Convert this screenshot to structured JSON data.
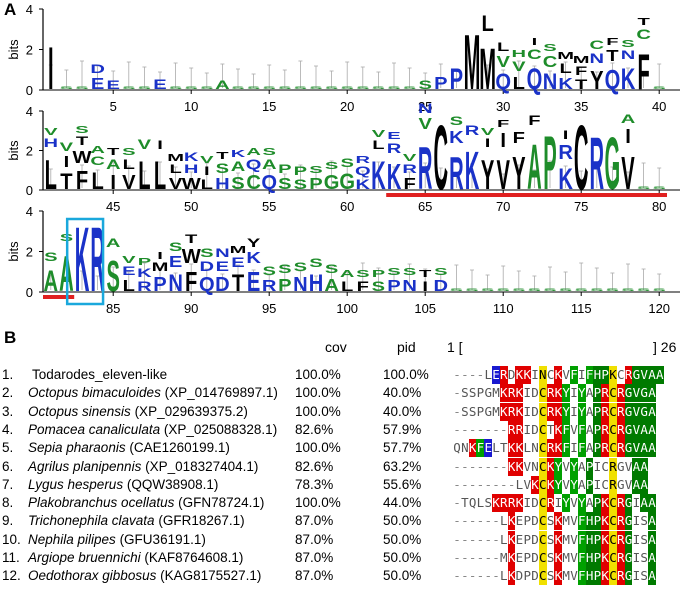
{
  "panels": {
    "a_label": "A",
    "b_label": "B"
  },
  "logo": {
    "y_axis_label": "bits",
    "y_ticks": [
      "4",
      "2",
      "0"
    ],
    "rows": [
      {
        "x_ticks": [
          "5",
          "10",
          "15",
          "20",
          "25",
          "30",
          "35",
          "40"
        ],
        "start": 1
      },
      {
        "x_ticks": [
          "45",
          "50",
          "55",
          "60",
          "65",
          "70",
          "75",
          "80"
        ],
        "start": 41
      },
      {
        "x_ticks": [
          "85",
          "90",
          "95",
          "100",
          "105",
          "110",
          "115",
          "120"
        ],
        "start": 81
      }
    ],
    "colors": {
      "green": "#1e8c2a",
      "blue": "#1a32c8",
      "black": "#000000",
      "red_bar": "#e02020",
      "highlight_box": "#1aa8dc"
    },
    "highlight_positions": "82-84",
    "underline_positions": "63-82"
  },
  "table": {
    "cov_header": "cov",
    "pid_header": "pid",
    "range_start": "1 [",
    "range_end": "] 26",
    "rows": [
      {
        "num": "1.",
        "italic": "",
        "name": "Todarodes_eleven-like",
        "cov": "100.0%",
        "pid": "100.0%",
        "seq": "----LERDKKINCKVFIFHPKCRGVAA"
      },
      {
        "num": "2.",
        "italic": "Octopus bimaculoides",
        "name": " (XP_014769897.1)",
        "cov": "100.0%",
        "pid": "40.0%",
        "seq": "-SSPGMKRKIDCRKYIYAPRCRGVGA"
      },
      {
        "num": "3.",
        "italic": "Octopus sinensis",
        "name": " (XP_029639375.2)",
        "cov": "100.0%",
        "pid": "40.0%",
        "seq": "-SSPGMKRKIDCRKYIYAPRCRGVGA"
      },
      {
        "num": "4.",
        "italic": "Pomacea canaliculata",
        "name": " (XP_025088328.1)",
        "cov": "82.6%",
        "pid": "57.9%",
        "seq": "-------RRIDCTKFVFAPRCRGVAA"
      },
      {
        "num": "5.",
        "italic": "Sepia pharaonis",
        "name": " (CAE1260199.1)",
        "cov": "100.0%",
        "pid": "57.7%",
        "seq": "QNKFELTKKLNCRKFIFAPRCRGVAA"
      },
      {
        "num": "6.",
        "italic": "Agrilus planipennis",
        "name": " (XP_018327404.1)",
        "cov": "82.6%",
        "pid": "63.2%",
        "seq": "-------KKVNCKYVYAPICRGVAA"
      },
      {
        "num": "7.",
        "italic": "Lygus hesperus",
        "name": " (QQW38908.1)",
        "cov": "78.3%",
        "pid": "55.6%",
        "seq": "--------LVKCKYVYAPICRGVAA"
      },
      {
        "num": "8.",
        "italic": "Plakobranchus ocellatus",
        "name": " (GFN78724.1)",
        "cov": "100.0%",
        "pid": "44.0%",
        "seq": "-TQLSKRRKIDCRIYVYAPKCRGIAA"
      },
      {
        "num": "9.",
        "italic": "Trichonephila clavata",
        "name": " (GFR18267.1)",
        "cov": "87.0%",
        "pid": "50.0%",
        "seq": "------LKEPDCSKMVFHPKCRGISA"
      },
      {
        "num": "10.",
        "italic": "Nephila pilipes",
        "name": " (GFU36191.1)",
        "cov": "87.0%",
        "pid": "50.0%",
        "seq": "------LKEPDCSKMVFHPKCRGISA"
      },
      {
        "num": "11.",
        "italic": "Argiope bruennichi",
        "name": " (KAF8764608.1)",
        "cov": "87.0%",
        "pid": "50.0%",
        "seq": "------MKEPDCSKMVFHPKCRGISA"
      },
      {
        "num": "12.",
        "italic": "Oedothorax gibbosus",
        "name": " (KAG8175527.1)",
        "cov": "87.0%",
        "pid": "50.0%",
        "seq": "------LKDPDCSKMVFHPKCRGISA"
      }
    ]
  }
}
